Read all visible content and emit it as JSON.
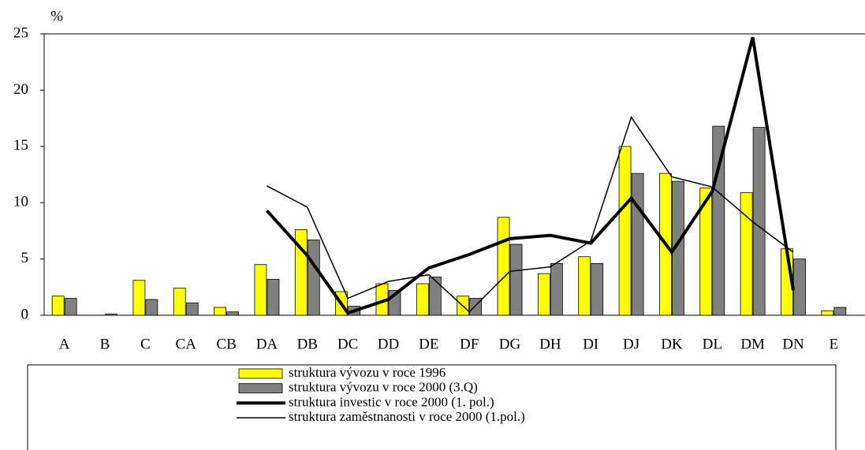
{
  "chart_data": {
    "type": "bar",
    "ylabel": "%",
    "categories": [
      "A",
      "B",
      "C",
      "CA",
      "CB",
      "DA",
      "DB",
      "DC",
      "DD",
      "DE",
      "DF",
      "DG",
      "DH",
      "DI",
      "DJ",
      "DK",
      "DL",
      "DM",
      "DN",
      "E"
    ],
    "ylim": [
      0,
      25
    ],
    "yticks": [
      0,
      5,
      10,
      15,
      20,
      25
    ],
    "grid": false,
    "legend": "bottom",
    "series": [
      {
        "name": "struktura vývozu v roce 1996",
        "type": "bar",
        "color": "#ffff00",
        "values": [
          1.7,
          0,
          3.1,
          2.4,
          0.7,
          4.5,
          7.6,
          2.1,
          2.8,
          2.8,
          1.7,
          8.7,
          3.7,
          5.2,
          15.0,
          12.6,
          11.3,
          10.9,
          5.9,
          0.4
        ]
      },
      {
        "name": "struktura vývozu v roce 2000 (3.Q)",
        "type": "bar",
        "color": "#808080",
        "values": [
          1.5,
          0.1,
          1.4,
          1.1,
          0.3,
          3.2,
          6.7,
          0.8,
          2.2,
          3.4,
          1.5,
          6.3,
          4.6,
          4.6,
          12.6,
          11.9,
          16.8,
          16.7,
          5.0,
          0.7
        ]
      },
      {
        "name": "struktura investic v roce 2000 (1. pol.)",
        "type": "line",
        "color": "#000000",
        "width": 4,
        "values": [
          null,
          null,
          null,
          null,
          null,
          9.3,
          5.3,
          0.2,
          1.4,
          4.2,
          5.4,
          6.8,
          7.1,
          6.4,
          10.4,
          5.6,
          11.0,
          24.7,
          2.2,
          null
        ]
      },
      {
        "name": "struktura zaměstnanosti v roce 2000 (1.pol.)",
        "type": "line",
        "color": "#000000",
        "width": 1.5,
        "values": [
          null,
          null,
          null,
          null,
          null,
          11.5,
          9.6,
          1.5,
          3.0,
          3.6,
          0.3,
          3.9,
          4.3,
          6.6,
          17.6,
          12.3,
          11.4,
          8.3,
          5.6,
          null
        ]
      }
    ]
  }
}
